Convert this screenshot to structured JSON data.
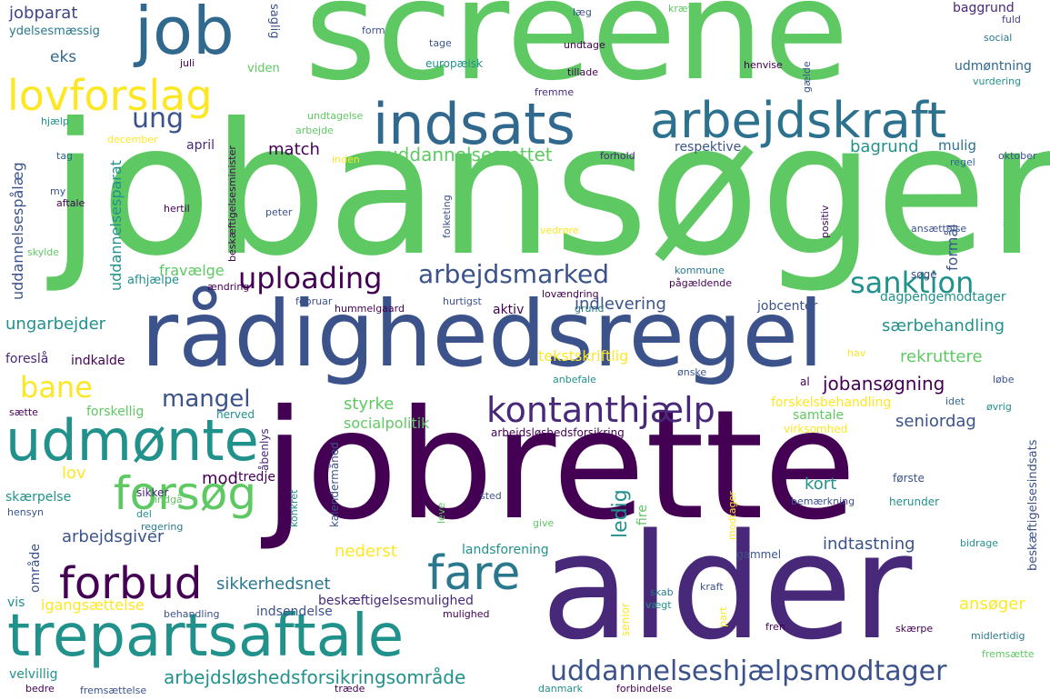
{
  "colors": {
    "background": "#ffffff",
    "palette": [
      "#440154",
      "#3b528b",
      "#21918c",
      "#5ec962",
      "#fde725"
    ]
  },
  "words": {
    "screene": "screene",
    "jobansoger": "jobansøger",
    "jobrette": "jobrette",
    "alder": "alder",
    "radighedsregel": "rådighedsregel",
    "job": "job",
    "lovforslag": "lovforslag",
    "indsats": "indsats",
    "arbejdskraft": "arbejdskraft",
    "udmonte": "udmønte",
    "forsog": "forsøg",
    "trepartsaftale": "trepartsaftale",
    "forbud": "forbud",
    "fare": "fare",
    "kontanthjaelp": "kontanthjælp",
    "uploading": "uploading",
    "arbejdsmarked": "arbejdsmarked",
    "sanktion": "sanktion",
    "uddannelseshjaelpsmodtager": "uddannelseshjælpsmodtager",
    "arbejdsloshedsforsikringsomrade": "arbejdsløshedsforsikringsområde",
    "mangel": "mangel",
    "bane": "bane",
    "ung": "ung",
    "jobparat": "jobparat",
    "eks": "eks",
    "ydelsesmaessig": "ydelsesmæssig",
    "uddannelsesrettet": "uddannelsesrettet",
    "match": "match",
    "april": "april",
    "respektive": "respektive",
    "bagrund": "bagrund",
    "mulig": "mulig",
    "udmontning": "udmøntning",
    "baggrund": "baggrund",
    "oktober": "oktober",
    "vurdering": "vurdering",
    "social": "social",
    "kraeve": "kræve",
    "lag": "læg",
    "fuld": "fuld",
    "form": "form",
    "tage": "tage",
    "undtage": "undtage",
    "europaeisk": "europæisk",
    "tillade": "tillade",
    "fremme": "fremme",
    "henvise": "henvise",
    "juli": "juli",
    "viden": "viden",
    "saglig": "saglig",
    "hjaelp": "hjælp",
    "undtagelse": "undtagelse",
    "arbejde": "arbejde",
    "december": "december",
    "tag": "tag",
    "inden": "inden",
    "forhold": "forhold",
    "regel": "regel",
    "my": "my",
    "aftale": "aftale",
    "hertil": "hertil",
    "peter": "peter",
    "folketing": "folketing",
    "positiv": "positiv",
    "ansaettelse": "ansættelse",
    "skylde": "skylde",
    "vedrore": "vedrøre",
    "fravaelge": "fravælge",
    "afhjaelpe": "afhjælpe",
    "andring": "ændring",
    "februar": "februar",
    "hummelgaard": "hummelgaard",
    "hurtigst": "hurtigst",
    "lovandring": "lovændring",
    "kommune": "kommune",
    "pagaeldende": "pågældende",
    "soge": "søge",
    "dagpengemodtager": "dagpengemodtager",
    "indlevering": "indlevering",
    "jobcenter": "jobcenter",
    "aktiv": "aktiv",
    "grund": "grund",
    "saerbehandling": "særbehandling",
    "ungarbejder": "ungarbejder",
    "rekruttere": "rekruttere",
    "foresla": "foreslå",
    "indkalde": "indkalde",
    "tekstskriftlig": "tekstskriftlig",
    "hav": "hav",
    "onske": "ønske",
    "jobansogning": "jobansøgning",
    "al": "al",
    "lobe": "løbe",
    "anbefale": "anbefale",
    "forskelsbehandling": "forskelsbehandling",
    "idet": "idet",
    "ovrig": "øvrig",
    "styrke": "styrke",
    "samtale": "samtale",
    "saette": "sætte",
    "forskellig": "forskellig",
    "herved": "herved",
    "socialpolitik": "socialpolitik",
    "arbejdsloshedsforsikring": "arbejdsløshedsforsikring",
    "virksomhed": "virksomhed",
    "seniordag": "seniordag",
    "lov": "lov",
    "mod": "mod",
    "tredje": "tredje",
    "kort": "kort",
    "sikker": "sikker",
    "forste": "første",
    "skaerpelse": "skærpelse",
    "indga": "indgå",
    "del": "del",
    "sted": "sted",
    "give": "give",
    "bemaerkning": "bemærkning",
    "herunder": "herunder",
    "hensyn": "hensyn",
    "regering": "regering",
    "arbejdsgiver": "arbejdsgiver",
    "nederst": "nederst",
    "landsforening": "landsforening",
    "indtastning": "indtastning",
    "gammel": "gammel",
    "bidrage": "bidrage",
    "sikkerhedsnet": "sikkerhedsnet",
    "vis": "vis",
    "beskaeftigelsesmulighed": "beskæftigelsesmulighed",
    "igangsaettelse": "igangsættelse",
    "behandling": "behandling",
    "indsendelse": "indsendelse",
    "mulighed": "mulighed",
    "vaegt": "vægt",
    "skab": "skab",
    "kraft": "kraft",
    "ansoger": "ansøger",
    "fren": "fren",
    "skaerpe": "skærpe",
    "midlertidig": "midlertidig",
    "fremsaette": "fremsætte",
    "velvillig": "velvillig",
    "bedre": "bedre",
    "fremsaettelse": "fremsættelse",
    "traede": "træde",
    "danmark": "danmark",
    "forbindelse": "forbindelse",
    "uddannelsespalaeg": "uddannelsespålæg",
    "uddannelsesparat": "uddannelsesparat",
    "beskaeftigelsesminister": "beskæftigelsesminister",
    "beskaeftigelsesindsats": "beskæftigelsesindsats",
    "formal": "formål",
    "omrade": "område",
    "ledig": "ledig",
    "fire": "fire",
    "senior": "senior",
    "kalendermaned": "kalendermåned",
    "abenlys": "åbenlys",
    "galde": "gælde",
    "saerlig": "særlig",
    "konkret": "konkret",
    "leve": "leve",
    "modtager": "modtager",
    "part": "part"
  }
}
